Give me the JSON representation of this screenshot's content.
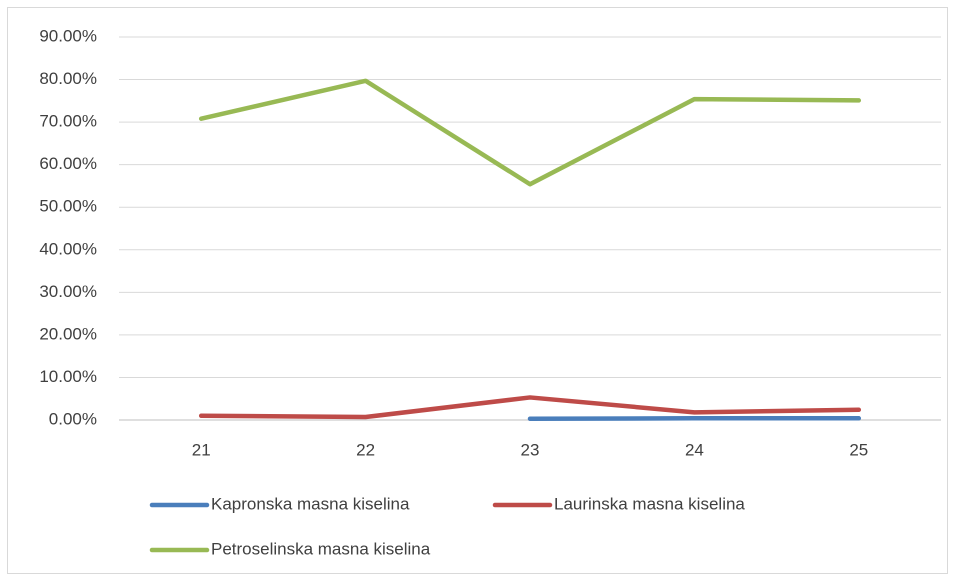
{
  "chart_data": {
    "type": "line",
    "categories": [
      "21",
      "22",
      "23",
      "24",
      "25"
    ],
    "series": [
      {
        "name": "Kapronska masna kiselina",
        "color": "#4a7ebb",
        "values": [
          null,
          null,
          0.3,
          0.4,
          0.4
        ]
      },
      {
        "name": "Laurinska masna kiselina",
        "color": "#be4b48",
        "values": [
          1.0,
          0.7,
          5.3,
          1.8,
          2.4
        ]
      },
      {
        "name": "Petroselinska masna kiselina",
        "color": "#98b954",
        "values": [
          70.8,
          79.7,
          55.4,
          75.4,
          75.1
        ]
      }
    ],
    "ylim": [
      0,
      90
    ],
    "yticks": [
      {
        "value": 0,
        "label": "0.00%"
      },
      {
        "value": 10,
        "label": "10.00%"
      },
      {
        "value": 20,
        "label": "20.00%"
      },
      {
        "value": 30,
        "label": "30.00%"
      },
      {
        "value": 40,
        "label": "40.00%"
      },
      {
        "value": 50,
        "label": "50.00%"
      },
      {
        "value": 60,
        "label": "60.00%"
      },
      {
        "value": 70,
        "label": "70.00%"
      },
      {
        "value": 80,
        "label": "80.00%"
      },
      {
        "value": 90,
        "label": "90.00%"
      }
    ],
    "grid": true,
    "legend": "bottom"
  }
}
